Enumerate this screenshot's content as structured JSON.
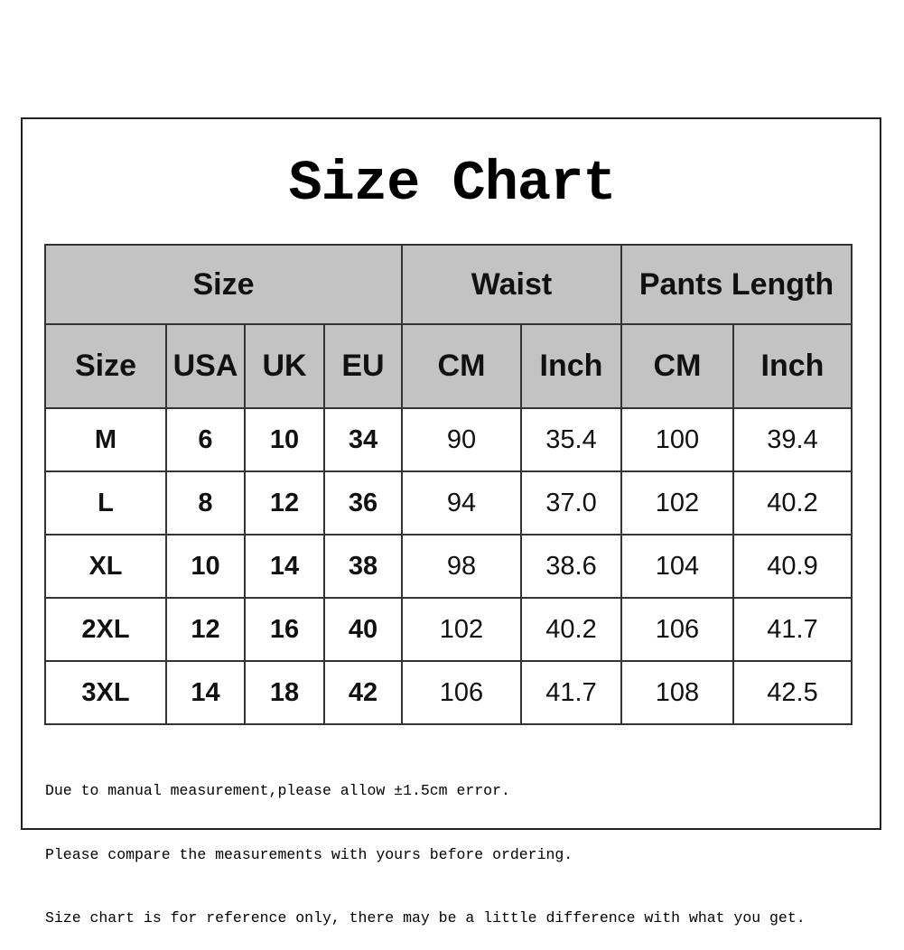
{
  "title": "Size Chart",
  "table": {
    "group_headers": [
      "Size",
      "Waist",
      "Pants Length"
    ],
    "sub_headers": [
      "Size",
      "USA",
      "UK",
      "EU",
      "CM",
      "Inch",
      "CM",
      "Inch"
    ],
    "rows": [
      [
        "M",
        "6",
        "10",
        "34",
        "90",
        "35.4",
        "100",
        "39.4"
      ],
      [
        "L",
        "8",
        "12",
        "36",
        "94",
        "37.0",
        "102",
        "40.2"
      ],
      [
        "XL",
        "10",
        "14",
        "38",
        "98",
        "38.6",
        "104",
        "40.9"
      ],
      [
        "2XL",
        "12",
        "16",
        "40",
        "102",
        "40.2",
        "106",
        "41.7"
      ],
      [
        "3XL",
        "14",
        "18",
        "42",
        "106",
        "41.7",
        "108",
        "42.5"
      ]
    ]
  },
  "notes": [
    "Due to manual measurement,please allow ±1.5cm error.",
    "Please compare the measurements with yours before ordering.",
    "Size chart is for reference only, there may be a little difference with what you get."
  ],
  "colors": {
    "header_bg": "#c3c3c3",
    "border": "#333333"
  }
}
